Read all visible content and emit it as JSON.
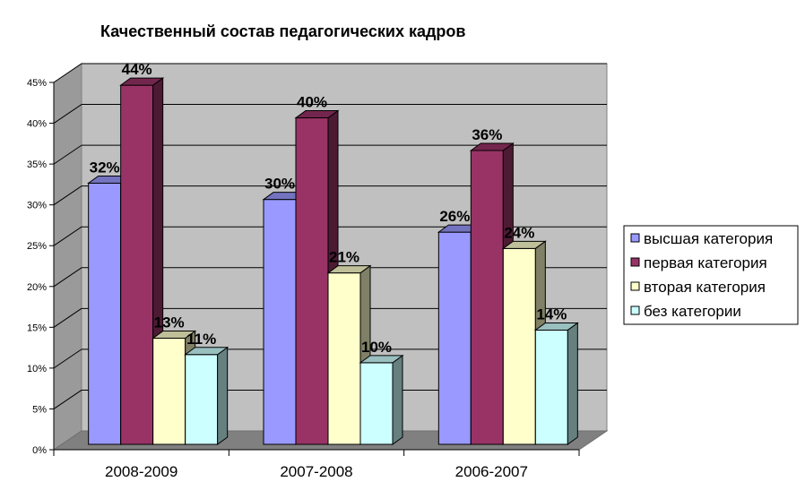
{
  "chart_data": {
    "type": "bar",
    "title": "Качественный состав педагогических кадров",
    "categories": [
      "2008-2009",
      "2007-2008",
      "2006-2007"
    ],
    "series": [
      {
        "name": "высшая категория",
        "values": [
          32,
          30,
          26
        ],
        "labels": [
          "32%",
          "30%",
          "26%"
        ],
        "color": "#9999ff"
      },
      {
        "name": "первая категория",
        "values": [
          44,
          40,
          36
        ],
        "labels": [
          "44%",
          "40%",
          "36%"
        ],
        "color": "#993366"
      },
      {
        "name": "вторая категория",
        "values": [
          13,
          21,
          24
        ],
        "labels": [
          "13%",
          "21%",
          "24%"
        ],
        "color": "#ffffcc"
      },
      {
        "name": "без категории",
        "values": [
          11,
          10,
          14
        ],
        "labels": [
          "11%",
          "10%",
          "14%"
        ],
        "color": "#ccffff"
      }
    ],
    "yticks": [
      "0%",
      "5%",
      "10%",
      "15%",
      "20%",
      "25%",
      "30%",
      "35%",
      "40%",
      "45%"
    ],
    "ylim": [
      0,
      45
    ],
    "grid": true,
    "legend": "right"
  }
}
